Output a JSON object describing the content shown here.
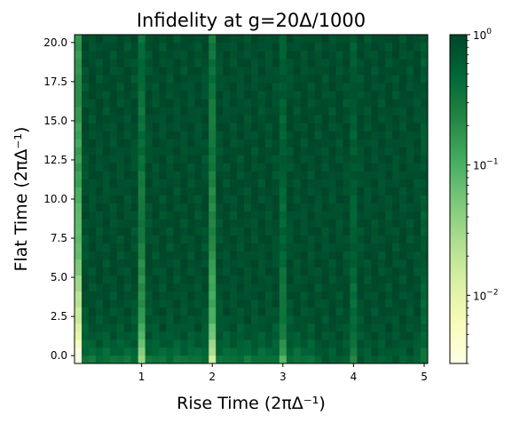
{
  "chart_data": {
    "type": "heatmap",
    "title": "Infidelity at g=20Δ/1000",
    "xlabel": "Rise Time (2πΔ⁻¹)",
    "ylabel": "Flat Time (2πΔ⁻¹)",
    "xlim": [
      0.05,
      5.05
    ],
    "ylim": [
      -0.5,
      20.5
    ],
    "x_ticks": [
      "1",
      "2",
      "3",
      "4",
      "5"
    ],
    "x_tick_values": [
      1,
      2,
      3,
      4,
      5
    ],
    "y_ticks": [
      "0.0",
      "2.5",
      "5.0",
      "7.5",
      "10.0",
      "12.5",
      "15.0",
      "17.5",
      "20.0"
    ],
    "y_tick_values": [
      0,
      2.5,
      5,
      7.5,
      10,
      12.5,
      15,
      17.5,
      20
    ],
    "x_grid": {
      "start": 0.1,
      "step": 0.1,
      "count": 50
    },
    "y_grid": {
      "start": 0,
      "step": 0.5,
      "count": 41
    },
    "colorbar": {
      "scale": "log",
      "range": [
        0.003,
        1
      ],
      "colormap": "YlGn",
      "tick_labels": [
        "10^0",
        "10^-1",
        "10^-2"
      ],
      "tick_values": [
        1,
        0.1,
        0.01
      ]
    },
    "features": {
      "background_infidelity": 0.85,
      "dips": [
        {
          "x": 0.1,
          "min_infidelity": 0.004
        },
        {
          "x": 1.0,
          "min_infidelity": 0.08
        },
        {
          "x": 2.0,
          "min_infidelity": 0.04
        },
        {
          "x": 3.0,
          "min_infidelity": 0.25
        },
        {
          "x": 4.0,
          "min_infidelity": 0.35
        },
        {
          "x": 5.0,
          "min_infidelity": 0.45
        }
      ]
    },
    "grid": false
  },
  "colors": {
    "cmap_stops": [
      "#ffffe5",
      "#f7fcb9",
      "#d9f0a3",
      "#addd8e",
      "#78c679",
      "#41ab5d",
      "#238443",
      "#006837",
      "#004529"
    ]
  }
}
